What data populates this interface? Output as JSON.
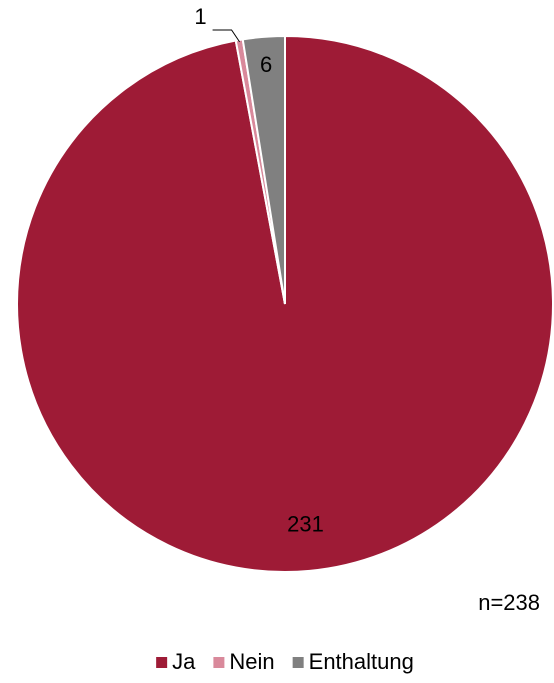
{
  "chart_data": {
    "type": "pie",
    "categories": [
      "Ja",
      "Nein",
      "Enthaltung"
    ],
    "values": [
      231,
      1,
      6
    ],
    "colors": [
      "#9e1b36",
      "#d9899b",
      "#808080"
    ],
    "annotation": "n=238",
    "legend": "bottom"
  }
}
